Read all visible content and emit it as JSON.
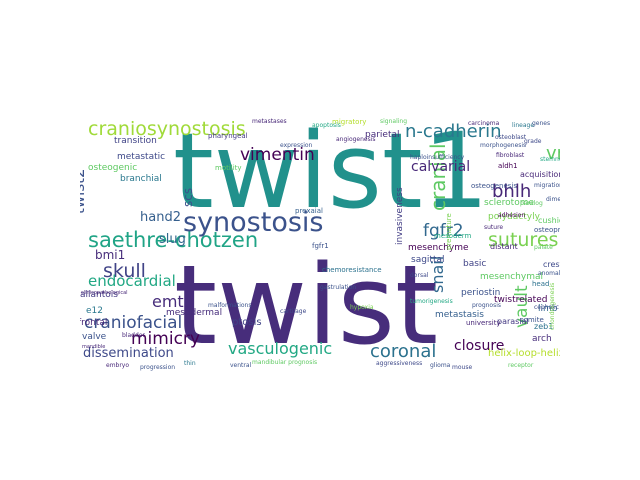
{
  "words": [
    {
      "text": "twist1",
      "color": "#21918c"
    },
    {
      "text": "twist",
      "color": "#472d7b"
    },
    {
      "text": "craniosynostosis",
      "color": "#a0da39"
    },
    {
      "text": "saethre-chotzen",
      "color": "#20a486"
    },
    {
      "text": "synostosis",
      "color": "#3b528b"
    },
    {
      "text": "n-cadherin",
      "color": "#2a788e"
    },
    {
      "text": "cranial",
      "color": "#5ec962"
    },
    {
      "text": "twist2",
      "color": "#3b528b"
    },
    {
      "text": "vimentin",
      "color": "#440154"
    },
    {
      "text": "fgfr2",
      "color": "#31688e"
    },
    {
      "text": "bhlh",
      "color": "#482878"
    },
    {
      "text": "sutures",
      "color": "#7ad151"
    },
    {
      "text": "vm",
      "color": "#5ec962"
    },
    {
      "text": "skull",
      "color": "#414487"
    },
    {
      "text": "emt",
      "color": "#472d7b"
    },
    {
      "text": "endocardial",
      "color": "#22a884"
    },
    {
      "text": "hand2",
      "color": "#355f8d"
    },
    {
      "text": "slug",
      "color": "#31688e"
    },
    {
      "text": "craniofacial",
      "color": "#3b528b"
    },
    {
      "text": "mimicry",
      "color": "#440154"
    },
    {
      "text": "vasculogenic",
      "color": "#22a884"
    },
    {
      "text": "coronal",
      "color": "#2c728e"
    },
    {
      "text": "dissemination",
      "color": "#3e4989"
    },
    {
      "text": "snail",
      "color": "#31688e"
    },
    {
      "text": "vault",
      "color": "#5ec962"
    },
    {
      "text": "closure",
      "color": "#440154"
    },
    {
      "text": "calvarial",
      "color": "#482878"
    },
    {
      "text": "scs",
      "color": "#3b528b"
    },
    {
      "text": "bmi1",
      "color": "#472d7b"
    },
    {
      "text": "transition",
      "color": "#414487"
    },
    {
      "text": "metastatic",
      "color": "#3e4989"
    },
    {
      "text": "osteogenic",
      "color": "#5ec962"
    },
    {
      "text": "branchial",
      "color": "#2a788e"
    },
    {
      "text": "parietal",
      "color": "#472d7b"
    },
    {
      "text": "sagittal",
      "color": "#3e4989"
    },
    {
      "text": "metastasis",
      "color": "#355f8d"
    },
    {
      "text": "mesenchyme",
      "color": "#440154"
    },
    {
      "text": "periostin",
      "color": "#3b528b"
    },
    {
      "text": "ptosis",
      "color": "#414487"
    },
    {
      "text": "frontal",
      "color": "#482878"
    },
    {
      "text": "allantois",
      "color": "#443983"
    },
    {
      "text": "valve",
      "color": "#3b528b"
    },
    {
      "text": "mesodermal",
      "color": "#472d7b"
    },
    {
      "text": "twistrelated",
      "color": "#440154"
    },
    {
      "text": "helix-loop-helix",
      "color": "#b5de2b"
    },
    {
      "text": "sclerotome",
      "color": "#5ec962"
    },
    {
      "text": "polydactyly",
      "color": "#7ad151"
    },
    {
      "text": "arch",
      "color": "#472d7b"
    },
    {
      "text": "basic",
      "color": "#414487"
    },
    {
      "text": "limb",
      "color": "#31688e"
    },
    {
      "text": "crest",
      "color": "#3e4989"
    },
    {
      "text": "zeb1",
      "color": "#2c728e"
    },
    {
      "text": "invasiveness",
      "color": "#433e85"
    },
    {
      "text": "mesenchymal",
      "color": "#5ec962"
    },
    {
      "text": "e12",
      "color": "#2a788e"
    },
    {
      "text": "acquisition",
      "color": "#482878"
    },
    {
      "text": "distant",
      "color": "#482878"
    },
    {
      "text": "cushion",
      "color": "#5ec962"
    },
    {
      "text": "parasial",
      "color": "#443983"
    },
    {
      "text": "migratory",
      "color": "#b5de2b"
    },
    {
      "text": "premature",
      "color": "#7ad151"
    },
    {
      "text": "mesoderm",
      "color": "#22a884"
    },
    {
      "text": "chemoresistance",
      "color": "#2c728e"
    },
    {
      "text": "osteoprogenitor",
      "color": "#3b528b"
    },
    {
      "text": "somite",
      "color": "#3b528b"
    },
    {
      "text": "pharyngeal",
      "color": "#443983"
    },
    {
      "text": "fgfr1",
      "color": "#3b528b"
    },
    {
      "text": "prexaial",
      "color": "#355f8d"
    },
    {
      "text": "aldh1",
      "color": "#440154"
    },
    {
      "text": "osteogenesis",
      "color": "#3b528b"
    },
    {
      "text": "university",
      "color": "#482878"
    },
    {
      "text": "haploinsufficiency",
      "color": "#3b528b"
    },
    {
      "text": "carcinoma",
      "color": "#482878"
    },
    {
      "text": "osteoblast",
      "color": "#3e4989"
    },
    {
      "text": "motility",
      "color": "#5ec962"
    },
    {
      "text": "cephalic",
      "color": "#3e4989"
    },
    {
      "text": "head",
      "color": "#2c728e"
    },
    {
      "text": "migration",
      "color": "#3b528b"
    },
    {
      "text": "fibroblast",
      "color": "#482878"
    },
    {
      "text": "grade",
      "color": "#3e4989"
    },
    {
      "text": "stemness",
      "color": "#22a884"
    },
    {
      "text": "paralog",
      "color": "#5ec962"
    },
    {
      "text": "dimer",
      "color": "#3b528b"
    },
    {
      "text": "suture",
      "color": "#482878"
    },
    {
      "text": "lineage",
      "color": "#2a788e"
    },
    {
      "text": "genes",
      "color": "#3b528b"
    },
    {
      "text": "morphogenesis",
      "color": "#3b528b"
    },
    {
      "text": "adhesion",
      "color": "#440154"
    },
    {
      "text": "epithelialmesenchymal",
      "color": "#3b528b"
    },
    {
      "text": "clinicopathological",
      "color": "#482878"
    },
    {
      "text": "prognosis",
      "color": "#3b528b"
    },
    {
      "text": "dorsal",
      "color": "#3e4989"
    },
    {
      "text": "mandible",
      "color": "#482878"
    },
    {
      "text": "chondrogenesis",
      "color": "#7ad151"
    },
    {
      "text": "ventral",
      "color": "#3b528b"
    },
    {
      "text": "cartilage",
      "color": "#3e4989"
    },
    {
      "text": "bladder",
      "color": "#482878"
    },
    {
      "text": "malformations",
      "color": "#3b528b"
    },
    {
      "text": "palate",
      "color": "#5ec962"
    },
    {
      "text": "anomalies",
      "color": "#3b528b"
    },
    {
      "text": "tumorigenesis",
      "color": "#22a884"
    },
    {
      "text": "gastrulation",
      "color": "#3b528b"
    },
    {
      "text": "angiogenesis",
      "color": "#482878"
    },
    {
      "text": "mandibular prognosis",
      "color": "#5ec962"
    },
    {
      "text": "aggressiveness",
      "color": "#3e4989"
    },
    {
      "text": "thin",
      "color": "#2a788e"
    },
    {
      "text": "glioma",
      "color": "#3b528b"
    },
    {
      "text": "receptor",
      "color": "#5ec962"
    },
    {
      "text": "embryo",
      "color": "#482878"
    },
    {
      "text": "progression",
      "color": "#3b528b"
    },
    {
      "text": "hypoxia",
      "color": "#7ad151"
    },
    {
      "text": "mouse",
      "color": "#3e4989"
    },
    {
      "text": "apoptosis",
      "color": "#22a884"
    },
    {
      "text": "expression",
      "color": "#3b528b"
    },
    {
      "text": "metastases",
      "color": "#482878"
    },
    {
      "text": "signaling",
      "color": "#5ec962"
    }
  ]
}
